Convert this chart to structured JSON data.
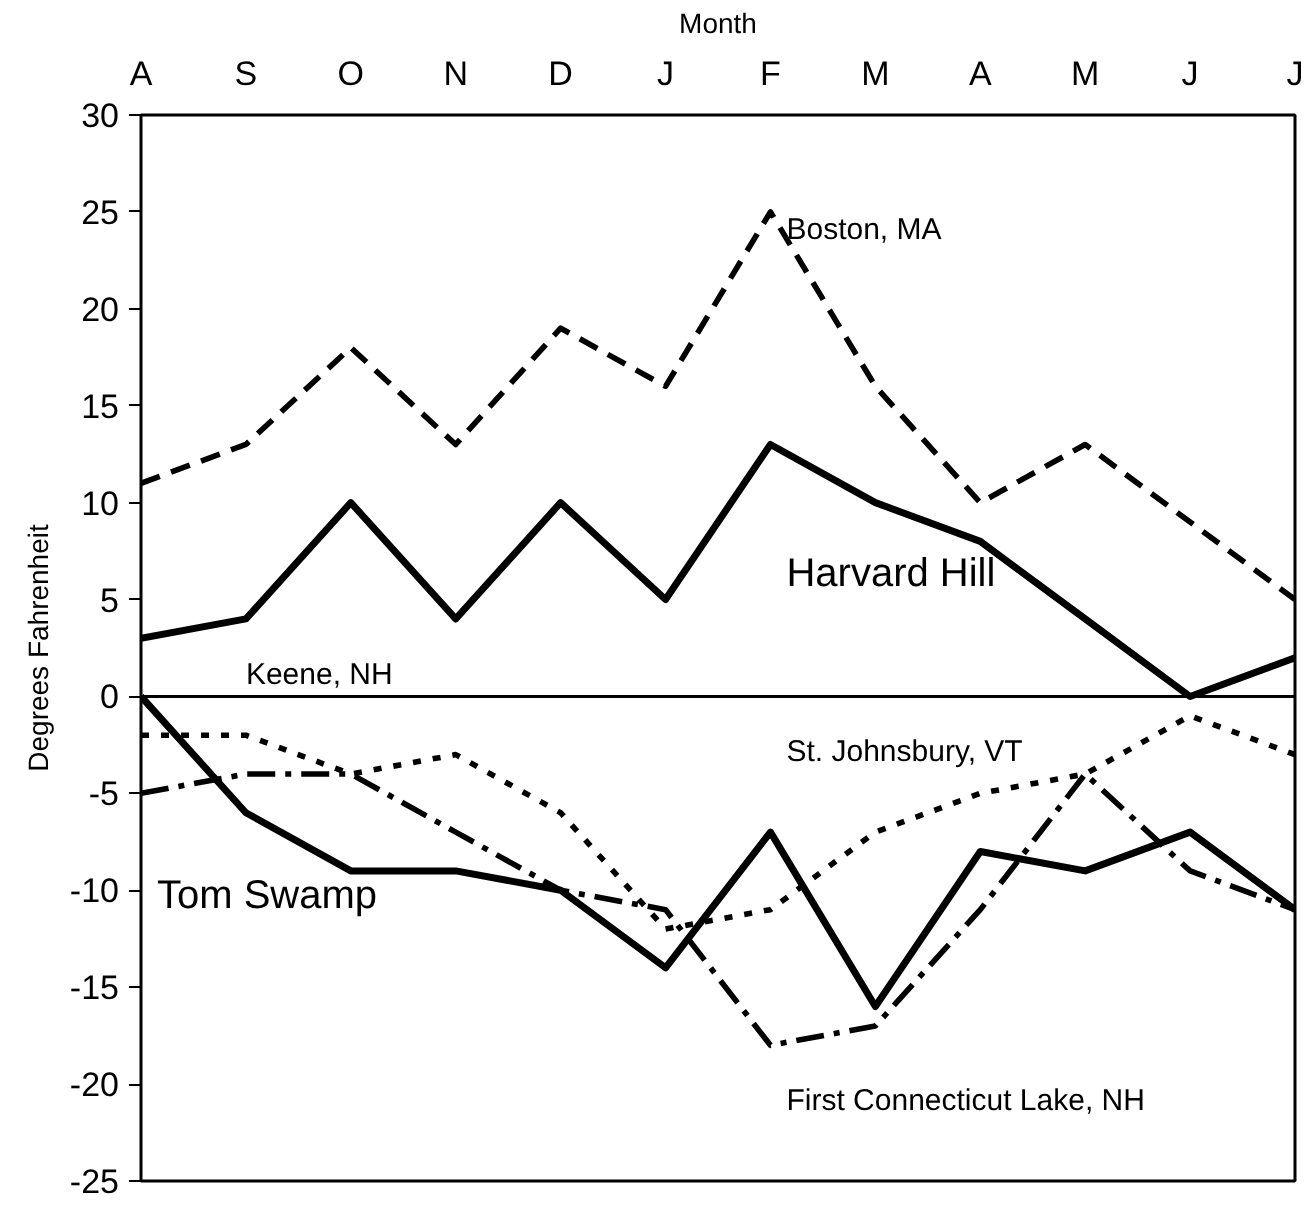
{
  "chart_data": {
    "type": "line",
    "xlabel": "Month",
    "ylabel": "Degrees Fahrenheit",
    "categories": [
      "A",
      "S",
      "O",
      "N",
      "D",
      "J",
      "F",
      "M",
      "A",
      "M",
      "J",
      "J"
    ],
    "series": [
      {
        "name": "Boston, MA",
        "color": "#000000",
        "line_style": "dashed",
        "values": [
          11,
          13,
          18,
          13,
          19,
          16,
          25,
          16,
          10,
          13,
          9,
          5
        ]
      },
      {
        "name": "Harvard Hill",
        "color": "#000000",
        "line_style": "solid",
        "values": [
          3,
          4,
          10,
          4,
          10,
          5,
          13,
          10,
          8,
          4,
          0,
          2
        ]
      },
      {
        "name": "St. Johnsbury, VT",
        "color": "#000000",
        "line_style": "dotted",
        "values": [
          -2,
          -2,
          -4,
          -3,
          -6,
          -12,
          -11,
          -7,
          -5,
          -4,
          -1,
          -3
        ]
      },
      {
        "name": "First Connecticut Lake, NH",
        "color": "#000000",
        "line_style": "dashdot",
        "values": [
          -5,
          -4,
          -4,
          -7,
          -10,
          -11,
          -18,
          -17,
          -11,
          -4,
          -9,
          -11
        ]
      },
      {
        "name": "Tom Swamp",
        "color": "#000000",
        "line_style": "solid",
        "values": [
          0,
          -6,
          -9,
          -9,
          -10,
          -14,
          -7,
          -16,
          -8,
          -9,
          -7,
          -11
        ]
      }
    ],
    "ref_lines": [
      {
        "axis": "y",
        "value": 0,
        "label": "Keene, NH",
        "color": "#000000"
      }
    ],
    "ylim": [
      -25,
      30
    ],
    "yticks": [
      -25,
      -20,
      -15,
      -10,
      -5,
      0,
      5,
      10,
      15,
      20,
      25,
      30
    ],
    "grid": false,
    "marker": "none"
  }
}
